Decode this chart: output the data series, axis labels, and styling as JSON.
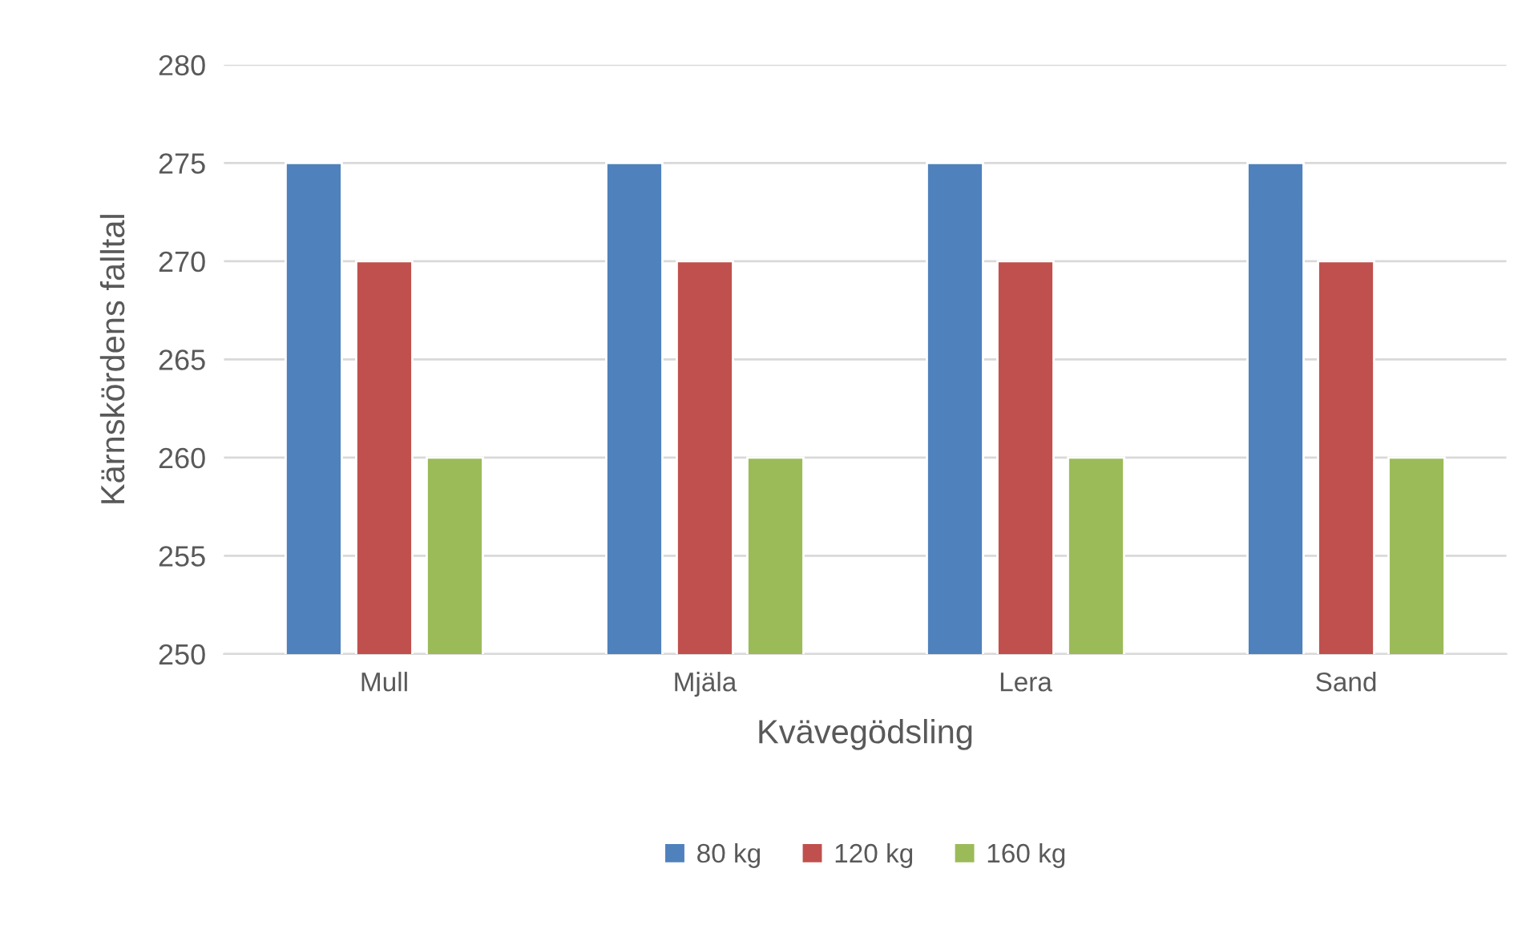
{
  "chart_data": {
    "type": "bar",
    "xlabel": "Kvävegödsling",
    "ylabel": "Kärnskördens falltal",
    "categories": [
      "Mull",
      "Mjäla",
      "Lera",
      "Sand"
    ],
    "series": [
      {
        "name": "80 kg",
        "color": "#4f81bd",
        "values": [
          275,
          275,
          275,
          275
        ]
      },
      {
        "name": "120 kg",
        "color": "#c0504d",
        "values": [
          270,
          270,
          270,
          270
        ]
      },
      {
        "name": "160 kg",
        "color": "#9bbb59",
        "values": [
          260,
          260,
          260,
          260
        ]
      }
    ],
    "ylim": [
      250,
      280
    ],
    "yticks": [
      250,
      255,
      260,
      265,
      270,
      275,
      280
    ],
    "grid": "y",
    "legend": "bottom"
  }
}
